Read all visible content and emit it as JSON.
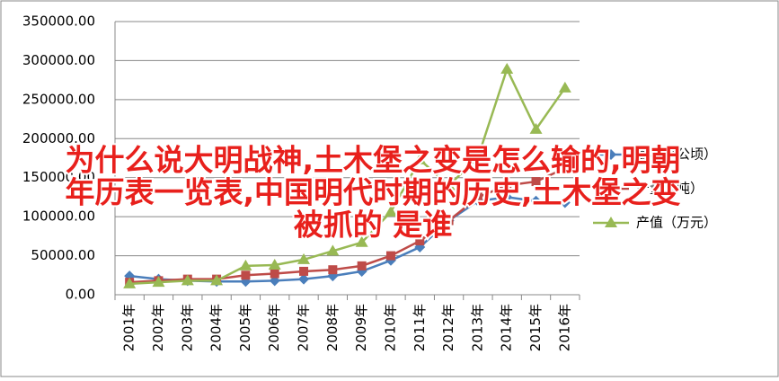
{
  "chart_data": {
    "type": "line",
    "categories": [
      "2001年",
      "2002年",
      "2003年",
      "2004年",
      "2005年",
      "2006年",
      "2007年",
      "2008年",
      "2009年",
      "2010年",
      "2011年",
      "2012年",
      "2013年",
      "2014年",
      "2015年",
      "2016年"
    ],
    "series": [
      {
        "name": "面积（公顷）",
        "color": "#4a7ebb",
        "marker": "diamond",
        "values": [
          24000,
          20000,
          18000,
          17000,
          17000,
          18000,
          20000,
          24000,
          30000,
          44000,
          61000,
          95000,
          120000,
          125000,
          120000,
          118000
        ]
      },
      {
        "name": "产量（吨）",
        "color": "#be4b48",
        "marker": "square",
        "values": [
          16000,
          18000,
          20000,
          20000,
          25000,
          27000,
          30000,
          32000,
          37000,
          50000,
          69000,
          95000,
          125000,
          140000,
          145000,
          162000
        ]
      },
      {
        "name": "产值（万元）",
        "color": "#98b954",
        "marker": "triangle",
        "values": [
          14000,
          16000,
          18000,
          18000,
          37000,
          38000,
          45000,
          56000,
          67000,
          106000,
          173000,
          140000,
          176000,
          289000,
          212000,
          265000
        ]
      }
    ],
    "ylim": [
      0,
      350000
    ],
    "yticks": [
      {
        "value": 0,
        "label": "0.00"
      },
      {
        "value": 50000,
        "label": "50000.00"
      },
      {
        "value": 100000,
        "label": "100000.00"
      },
      {
        "value": 150000,
        "label": "150000.00"
      },
      {
        "value": 200000,
        "label": "200000.00"
      },
      {
        "value": 250000,
        "label": "250000.00"
      },
      {
        "value": 300000,
        "label": "300000.00"
      },
      {
        "value": 350000,
        "label": "350000.00"
      }
    ],
    "grid": true,
    "legend": "right",
    "overlay_text": [
      "为什么说大明战神,土木堡之变是怎么输的,明朝",
      "年历表一览表,中国明代时期的历史,土木堡之变",
      "被抓的 是谁"
    ]
  }
}
